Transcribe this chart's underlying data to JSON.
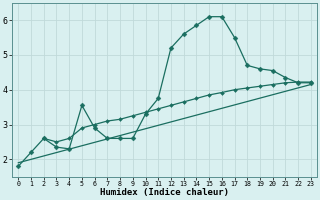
{
  "xlabel": "Humidex (Indice chaleur)",
  "bg_color": "#d9f0f0",
  "grid_color": "#c0dada",
  "line_color": "#1a6e60",
  "xlim": [
    -0.5,
    23.5
  ],
  "ylim": [
    1.5,
    6.5
  ],
  "yticks": [
    2,
    3,
    4,
    5,
    6
  ],
  "xticks": [
    0,
    1,
    2,
    3,
    4,
    5,
    6,
    7,
    8,
    9,
    10,
    11,
    12,
    13,
    14,
    15,
    16,
    17,
    18,
    19,
    20,
    21,
    22,
    23
  ],
  "line1_x": [
    0,
    1,
    2,
    3,
    4,
    5,
    6,
    7,
    8,
    9,
    10,
    11,
    12,
    13,
    14,
    15,
    16,
    17,
    18,
    19,
    20,
    21,
    22,
    23
  ],
  "line1_y": [
    1.8,
    2.2,
    2.6,
    2.35,
    2.3,
    3.55,
    2.9,
    2.6,
    2.6,
    2.6,
    3.3,
    3.75,
    5.2,
    5.6,
    5.85,
    6.1,
    6.1,
    5.5,
    4.7,
    4.6,
    4.55,
    4.35,
    4.2,
    4.2
  ],
  "line2_x": [
    2,
    3,
    4,
    5,
    6,
    7,
    8,
    9,
    10,
    11,
    12,
    13,
    14,
    15,
    16,
    17,
    18,
    19,
    20,
    21,
    22,
    23
  ],
  "line2_y": [
    2.6,
    2.5,
    2.6,
    2.9,
    3.0,
    3.1,
    3.15,
    3.25,
    3.35,
    3.45,
    3.55,
    3.65,
    3.75,
    3.85,
    3.92,
    4.0,
    4.05,
    4.1,
    4.15,
    4.2,
    4.22,
    4.22
  ],
  "line3_x": [
    0,
    23
  ],
  "line3_y": [
    1.9,
    4.15
  ]
}
